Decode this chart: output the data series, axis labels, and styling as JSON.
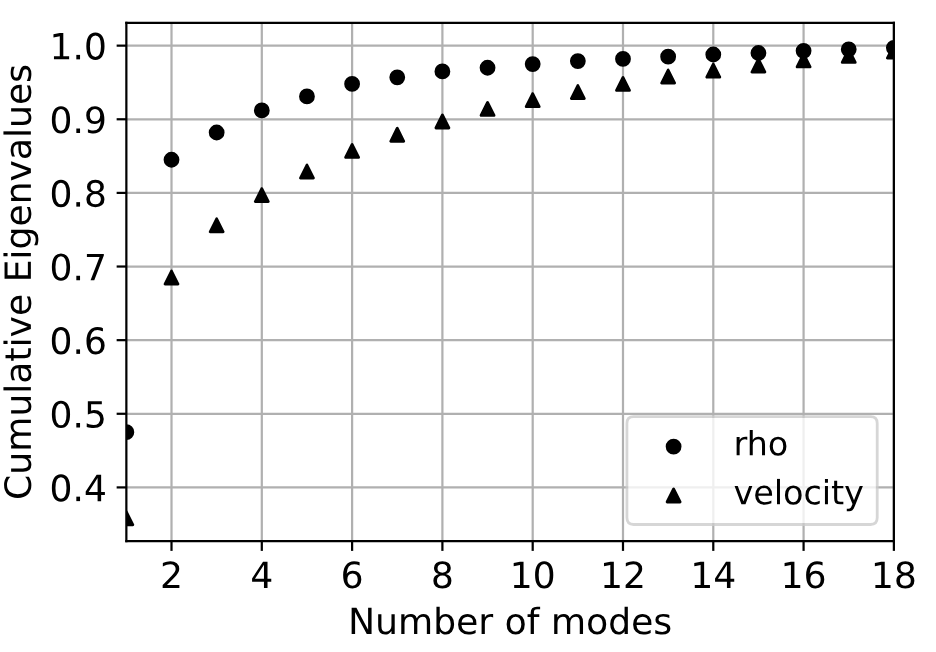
{
  "chart_data": {
    "type": "scatter",
    "xlabel": "Number of modes",
    "ylabel": "Cumulative Eigenvalues",
    "x": [
      1,
      2,
      3,
      4,
      5,
      6,
      7,
      8,
      9,
      10,
      11,
      12,
      13,
      14,
      15,
      16,
      17,
      18
    ],
    "series": [
      {
        "name": "rho",
        "color": "#000000",
        "marker": "circle",
        "values": [
          0.475,
          0.845,
          0.882,
          0.912,
          0.931,
          0.948,
          0.957,
          0.965,
          0.97,
          0.975,
          0.979,
          0.982,
          0.985,
          0.988,
          0.99,
          0.993,
          0.995,
          0.997
        ]
      },
      {
        "name": "velocity",
        "color": "#000000",
        "marker": "triangle",
        "values": [
          0.358,
          0.685,
          0.756,
          0.797,
          0.829,
          0.857,
          0.879,
          0.897,
          0.914,
          0.926,
          0.937,
          0.948,
          0.958,
          0.966,
          0.973,
          0.98,
          0.986,
          0.992
        ]
      }
    ],
    "xlim": [
      1,
      18
    ],
    "xticks": [
      2,
      4,
      6,
      8,
      10,
      12,
      14,
      16,
      18
    ],
    "ylim": [
      0.327,
      1.031
    ],
    "yticks": [
      {
        "value": 0.4,
        "label": "0.4"
      },
      {
        "value": 0.5,
        "label": "0.5"
      },
      {
        "value": 0.6,
        "label": "0.6"
      },
      {
        "value": 0.7,
        "label": "0.7"
      },
      {
        "value": 0.8,
        "label": "0.8"
      },
      {
        "value": 0.9,
        "label": "0.9"
      },
      {
        "value": 1.0,
        "label": "1.0"
      }
    ],
    "grid": true,
    "legend": "bottom right"
  }
}
